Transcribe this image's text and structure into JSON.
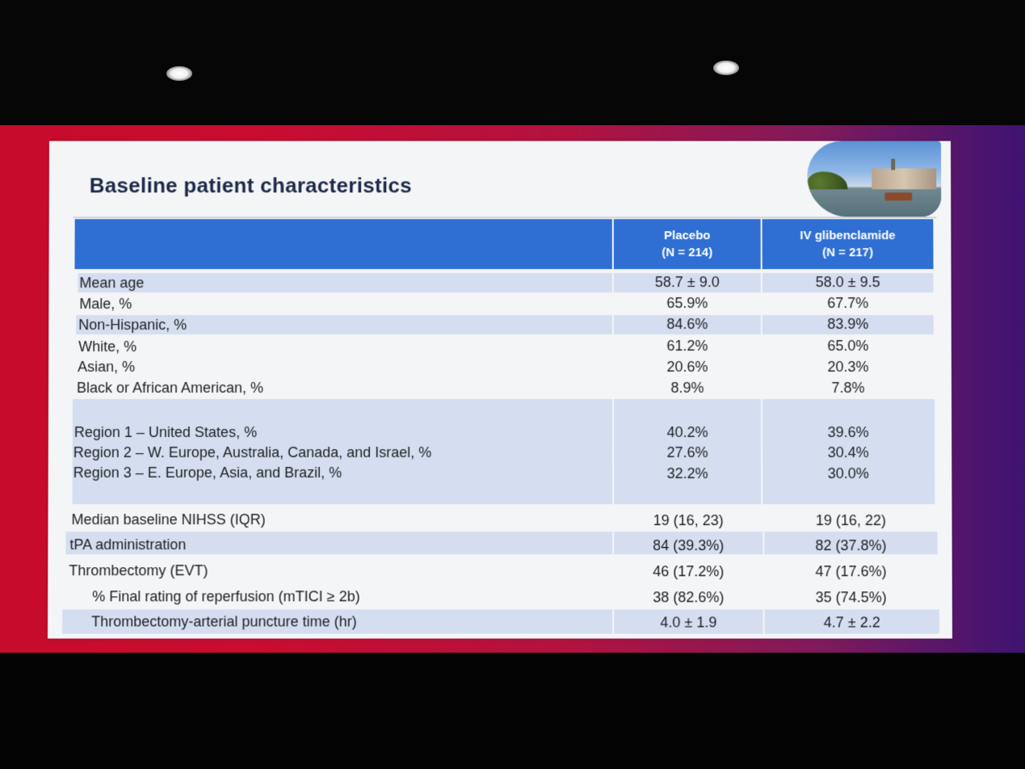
{
  "slide": {
    "title": "Baseline patient characteristics",
    "columns": [
      {
        "name": "Placebo",
        "n": "(N = 214)"
      },
      {
        "name": "IV glibenclamide",
        "n": "(N = 217)"
      }
    ],
    "rows": [
      {
        "label": "Mean age",
        "placebo": "58.7 ± 9.0",
        "glib": "58.0 ± 9.5"
      },
      {
        "label": "Male, %",
        "placebo": "65.9%",
        "glib": "67.7%"
      },
      {
        "label": "Non-Hispanic, %",
        "placebo": "84.6%",
        "glib": "83.9%"
      },
      {
        "label": "White, %",
        "placebo": "61.2%",
        "glib": "65.0%"
      },
      {
        "label": "Asian, %",
        "placebo": "20.6%",
        "glib": "20.3%"
      },
      {
        "label": "Black or African American, %",
        "placebo": "8.9%",
        "glib": "7.8%"
      },
      {
        "label": "Region 1 – United States, %",
        "placebo": "40.2%",
        "glib": "39.6%"
      },
      {
        "label": "Region 2 – W. Europe, Australia, Canada, and Israel, %",
        "placebo": "27.6%",
        "glib": "30.4%"
      },
      {
        "label": "Region 3 – E. Europe, Asia, and Brazil, %",
        "placebo": "32.2%",
        "glib": "30.0%"
      },
      {
        "label": "Median baseline NIHSS (IQR)",
        "placebo": "19 (16, 23)",
        "glib": "19 (16, 22)"
      },
      {
        "label": "tPA administration",
        "placebo": "84 (39.3%)",
        "glib": "82 (37.8%)"
      },
      {
        "label": "Thrombectomy (EVT)",
        "placebo": "46 (17.2%)",
        "glib": "47 (17.6%)"
      },
      {
        "label": "% Final rating of reperfusion (mTICI ≥ 2b)",
        "placebo": "38 (82.6%)",
        "glib": "35 (74.5%)"
      },
      {
        "label": "Thrombectomy-arterial puncture time (hr)",
        "placebo": "4.0 ± 1.9",
        "glib": "4.7 ± 2.2"
      }
    ]
  }
}
